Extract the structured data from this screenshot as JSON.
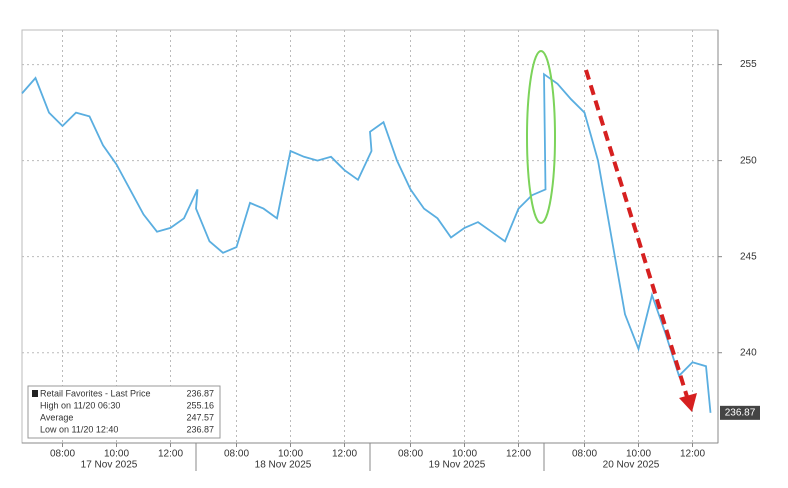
{
  "chart_data": {
    "type": "line",
    "x": [
      "2025-11-17 06:30",
      "2025-11-17 07:00",
      "2025-11-17 07:30",
      "2025-11-17 08:00",
      "2025-11-17 08:30",
      "2025-11-17 09:00",
      "2025-11-17 09:30",
      "2025-11-17 10:00",
      "2025-11-17 10:30",
      "2025-11-17 11:00",
      "2025-11-17 11:30",
      "2025-11-17 12:00",
      "2025-11-17 12:30",
      "2025-11-17 13:00",
      "2025-11-18 06:30",
      "2025-11-18 07:00",
      "2025-11-18 07:30",
      "2025-11-18 08:00",
      "2025-11-18 08:30",
      "2025-11-18 09:00",
      "2025-11-18 09:30",
      "2025-11-18 10:00",
      "2025-11-18 10:30",
      "2025-11-18 11:00",
      "2025-11-18 11:30",
      "2025-11-18 12:00",
      "2025-11-18 12:30",
      "2025-11-18 13:00",
      "2025-11-19 06:30",
      "2025-11-19 07:00",
      "2025-11-19 07:30",
      "2025-11-19 08:00",
      "2025-11-19 08:30",
      "2025-11-19 09:00",
      "2025-11-19 09:30",
      "2025-11-19 10:00",
      "2025-11-19 10:30",
      "2025-11-19 11:00",
      "2025-11-19 11:30",
      "2025-11-19 12:00",
      "2025-11-19 12:30",
      "2025-11-19 13:00",
      "2025-11-20 06:30",
      "2025-11-20 07:00",
      "2025-11-20 07:30",
      "2025-11-20 08:00",
      "2025-11-20 08:30",
      "2025-11-20 09:00",
      "2025-11-20 09:30",
      "2025-11-20 10:00",
      "2025-11-20 10:30",
      "2025-11-20 11:00",
      "2025-11-20 11:30",
      "2025-11-20 12:00",
      "2025-11-20 12:30",
      "2025-11-20 12:40"
    ],
    "series": [
      {
        "name": "Retail Favorites - Last Price",
        "color": "#5aaee0",
        "values": [
          253.5,
          254.3,
          252.5,
          251.8,
          252.5,
          252.3,
          250.8,
          249.8,
          248.5,
          247.2,
          246.3,
          246.5,
          247.0,
          248.5,
          247.5,
          245.8,
          245.2,
          245.5,
          247.8,
          247.5,
          247.0,
          250.5,
          250.2,
          250.0,
          250.2,
          249.5,
          249.0,
          250.5,
          251.5,
          252.0,
          250.0,
          248.5,
          247.5,
          247.0,
          246.0,
          246.5,
          246.8,
          246.3,
          245.8,
          247.5,
          248.2,
          248.5,
          254.5,
          254.0,
          253.2,
          252.5,
          250.0,
          246.0,
          242.0,
          240.2,
          243.0,
          241.0,
          238.8,
          239.5,
          239.3,
          236.87
        ]
      }
    ],
    "ylim": [
      235.3,
      256.8
    ],
    "yticks": [
      240,
      245,
      250,
      255
    ],
    "grid": true,
    "xticks": [
      {
        "value": "2025-11-17 08:00",
        "label": "08:00"
      },
      {
        "value": "2025-11-17 10:00",
        "label": "10:00"
      },
      {
        "value": "2025-11-17 12:00",
        "label": "12:00"
      },
      {
        "value": "2025-11-18 08:00",
        "label": "08:00"
      },
      {
        "value": "2025-11-18 10:00",
        "label": "10:00"
      },
      {
        "value": "2025-11-18 12:00",
        "label": "12:00"
      },
      {
        "value": "2025-11-19 08:00",
        "label": "08:00"
      },
      {
        "value": "2025-11-19 10:00",
        "label": "10:00"
      },
      {
        "value": "2025-11-19 12:00",
        "label": "12:00"
      },
      {
        "value": "2025-11-20 08:00",
        "label": "08:00"
      },
      {
        "value": "2025-11-20 10:00",
        "label": "10:00"
      },
      {
        "value": "2025-11-20 12:00",
        "label": "12:00"
      }
    ],
    "day_labels": [
      "17 Nov 2025",
      "18 Nov 2025",
      "19 Nov 2025",
      "20 Nov 2025"
    ],
    "legend": [
      {
        "label": "Retail Favorites - Last Price",
        "value": 236.87
      },
      {
        "label": "High on 11/20 06:30",
        "value": 255.16
      },
      {
        "label": "Average",
        "value": 247.57
      },
      {
        "label": "Low on 11/20 12:40",
        "value": 236.87
      }
    ],
    "legend_position": "lower left"
  }
}
